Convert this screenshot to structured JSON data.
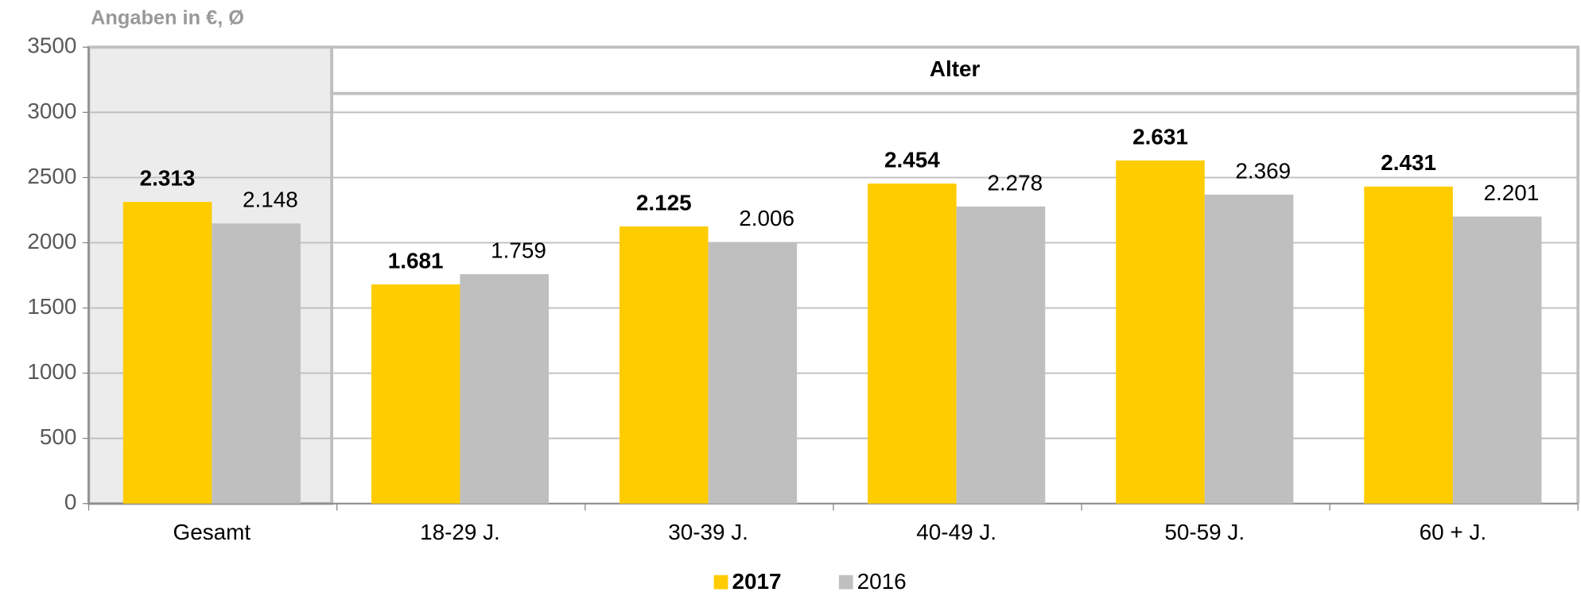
{
  "chart_data": {
    "type": "bar",
    "subtitle": "Angaben in €, Ø",
    "annotation": "Alter",
    "categories": [
      "Gesamt",
      "18-29 J.",
      "30-39 J.",
      "40-49 J.",
      "50-59 J.",
      "60 + J."
    ],
    "series": [
      {
        "name": "2017",
        "color": "#ffcc00",
        "values": [
          2313,
          1681,
          2125,
          2454,
          2631,
          2431
        ],
        "value_labels": [
          "2.313",
          "1.681",
          "2.125",
          "2.454",
          "2.631",
          "2.431"
        ]
      },
      {
        "name": "2016",
        "color": "#bfbfbf",
        "values": [
          2148,
          1759,
          2006,
          2278,
          2369,
          2201
        ],
        "value_labels": [
          "2.148",
          "1.759",
          "2.006",
          "2.278",
          "2.369",
          "2.201"
        ]
      }
    ],
    "ylim": [
      0,
      3500
    ],
    "yticks": [
      0,
      500,
      1000,
      1500,
      2000,
      2500,
      3000,
      3500
    ],
    "grid": true,
    "legend": "bottom"
  }
}
